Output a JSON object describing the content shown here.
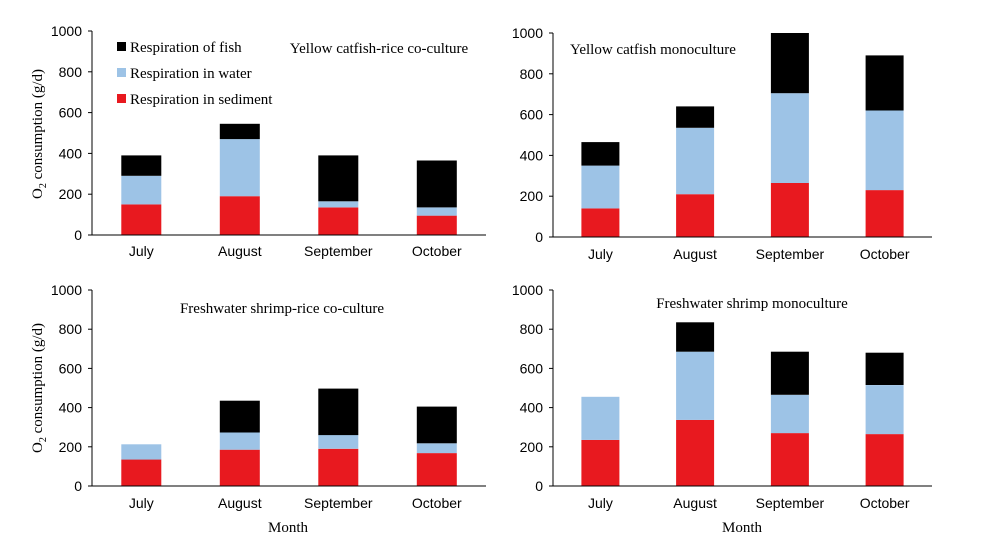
{
  "figure": {
    "ylabel_main": "O",
    "ylabel_sub": "2",
    "ylabel_rest": " consumption (g/d)",
    "xlabel": "Month"
  },
  "legend": [
    {
      "label": "Respiration of fish",
      "color": "#000000"
    },
    {
      "label": "Respiration in water",
      "color": "#9dc3e6"
    },
    {
      "label": "Respiration in sediment",
      "color": "#e8191f"
    }
  ],
  "chart_data": [
    {
      "type": "bar",
      "stacked": true,
      "title": "Yellow catfish-rice co-culture",
      "categories": [
        "July",
        "August",
        "September",
        "October"
      ],
      "ylim": [
        0,
        1000
      ],
      "yticks": [
        "0",
        "200",
        "400",
        "600",
        "800",
        "1000"
      ],
      "series": [
        {
          "name": "Respiration in sediment",
          "color": "#e8191f",
          "values": [
            150,
            190,
            135,
            95
          ]
        },
        {
          "name": "Respiration in water",
          "color": "#9dc3e6",
          "values": [
            140,
            280,
            30,
            40
          ]
        },
        {
          "name": "Respiration of fish",
          "color": "#000000",
          "values": [
            100,
            75,
            225,
            230
          ]
        }
      ]
    },
    {
      "type": "bar",
      "stacked": true,
      "title": "Yellow catfish monoculture",
      "categories": [
        "July",
        "August",
        "September",
        "October"
      ],
      "ylim": [
        0,
        1000
      ],
      "yticks": [
        "0",
        "200",
        "400",
        "600",
        "800",
        "1000"
      ],
      "series": [
        {
          "name": "Respiration in sediment",
          "color": "#e8191f",
          "values": [
            140,
            210,
            265,
            230
          ]
        },
        {
          "name": "Respiration in water",
          "color": "#9dc3e6",
          "values": [
            210,
            325,
            440,
            390
          ]
        },
        {
          "name": "Respiration of fish",
          "color": "#000000",
          "values": [
            115,
            105,
            295,
            270
          ]
        }
      ]
    },
    {
      "type": "bar",
      "stacked": true,
      "title": "Freshwater shrimp-rice co-culture",
      "categories": [
        "July",
        "August",
        "September",
        "October"
      ],
      "ylim": [
        0,
        1000
      ],
      "yticks": [
        "0",
        "200",
        "400",
        "600",
        "800",
        "1000"
      ],
      "series": [
        {
          "name": "Respiration in sediment",
          "color": "#e8191f",
          "values": [
            135,
            185,
            190,
            168
          ]
        },
        {
          "name": "Respiration in water",
          "color": "#9dc3e6",
          "values": [
            78,
            88,
            70,
            50
          ]
        },
        {
          "name": "Respiration of fish",
          "color": "#000000",
          "values": [
            0,
            162,
            237,
            187
          ]
        }
      ]
    },
    {
      "type": "bar",
      "stacked": true,
      "title": "Freshwater shrimp monoculture",
      "categories": [
        "July",
        "August",
        "September",
        "October"
      ],
      "ylim": [
        0,
        1000
      ],
      "yticks": [
        "0",
        "200",
        "400",
        "600",
        "800",
        "1000"
      ],
      "series": [
        {
          "name": "Respiration in sediment",
          "color": "#e8191f",
          "values": [
            235,
            337,
            270,
            265
          ]
        },
        {
          "name": "Respiration in water",
          "color": "#9dc3e6",
          "values": [
            220,
            348,
            195,
            250
          ]
        },
        {
          "name": "Respiration of fish",
          "color": "#000000",
          "values": [
            0,
            150,
            220,
            165
          ]
        }
      ]
    }
  ]
}
